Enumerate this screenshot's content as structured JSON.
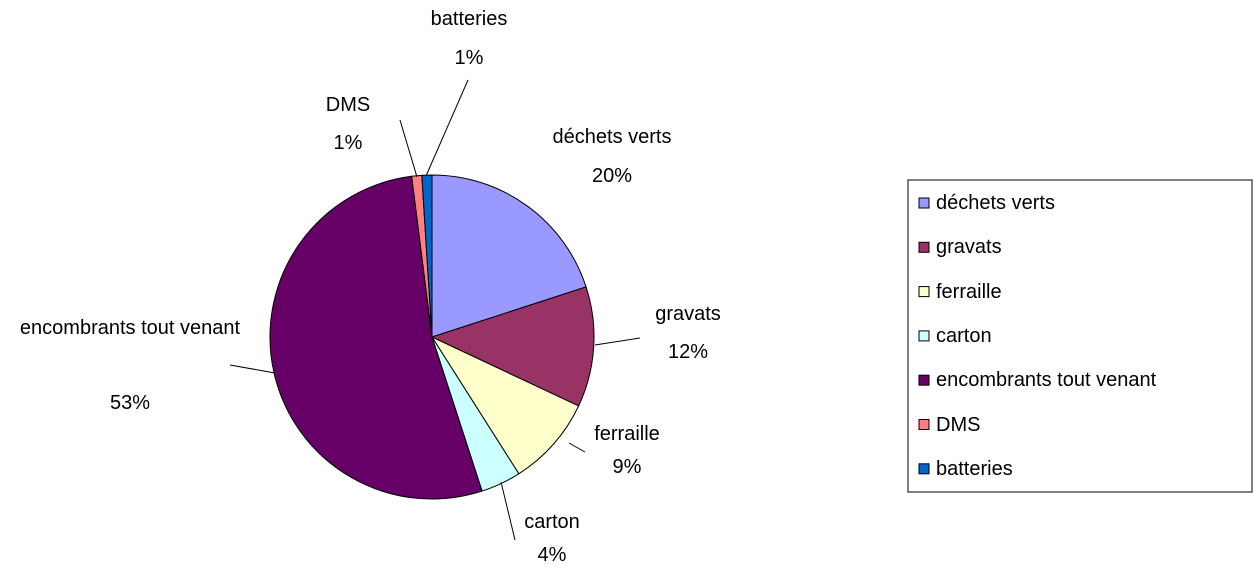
{
  "chart_data": {
    "type": "pie",
    "categories": [
      "déchets verts",
      "gravats",
      "ferraille",
      "carton",
      "encombrants tout venant",
      "DMS",
      "batteries"
    ],
    "values": [
      20,
      12,
      9,
      4,
      53,
      1,
      1
    ],
    "value_labels": [
      "20%",
      "12%",
      "9%",
      "4%",
      "53%",
      "1%",
      "1%"
    ],
    "colors": [
      "#9999ff",
      "#993366",
      "#ffffcc",
      "#ccffff",
      "#660066",
      "#ff8080",
      "#0066cc"
    ],
    "legend": "right"
  }
}
